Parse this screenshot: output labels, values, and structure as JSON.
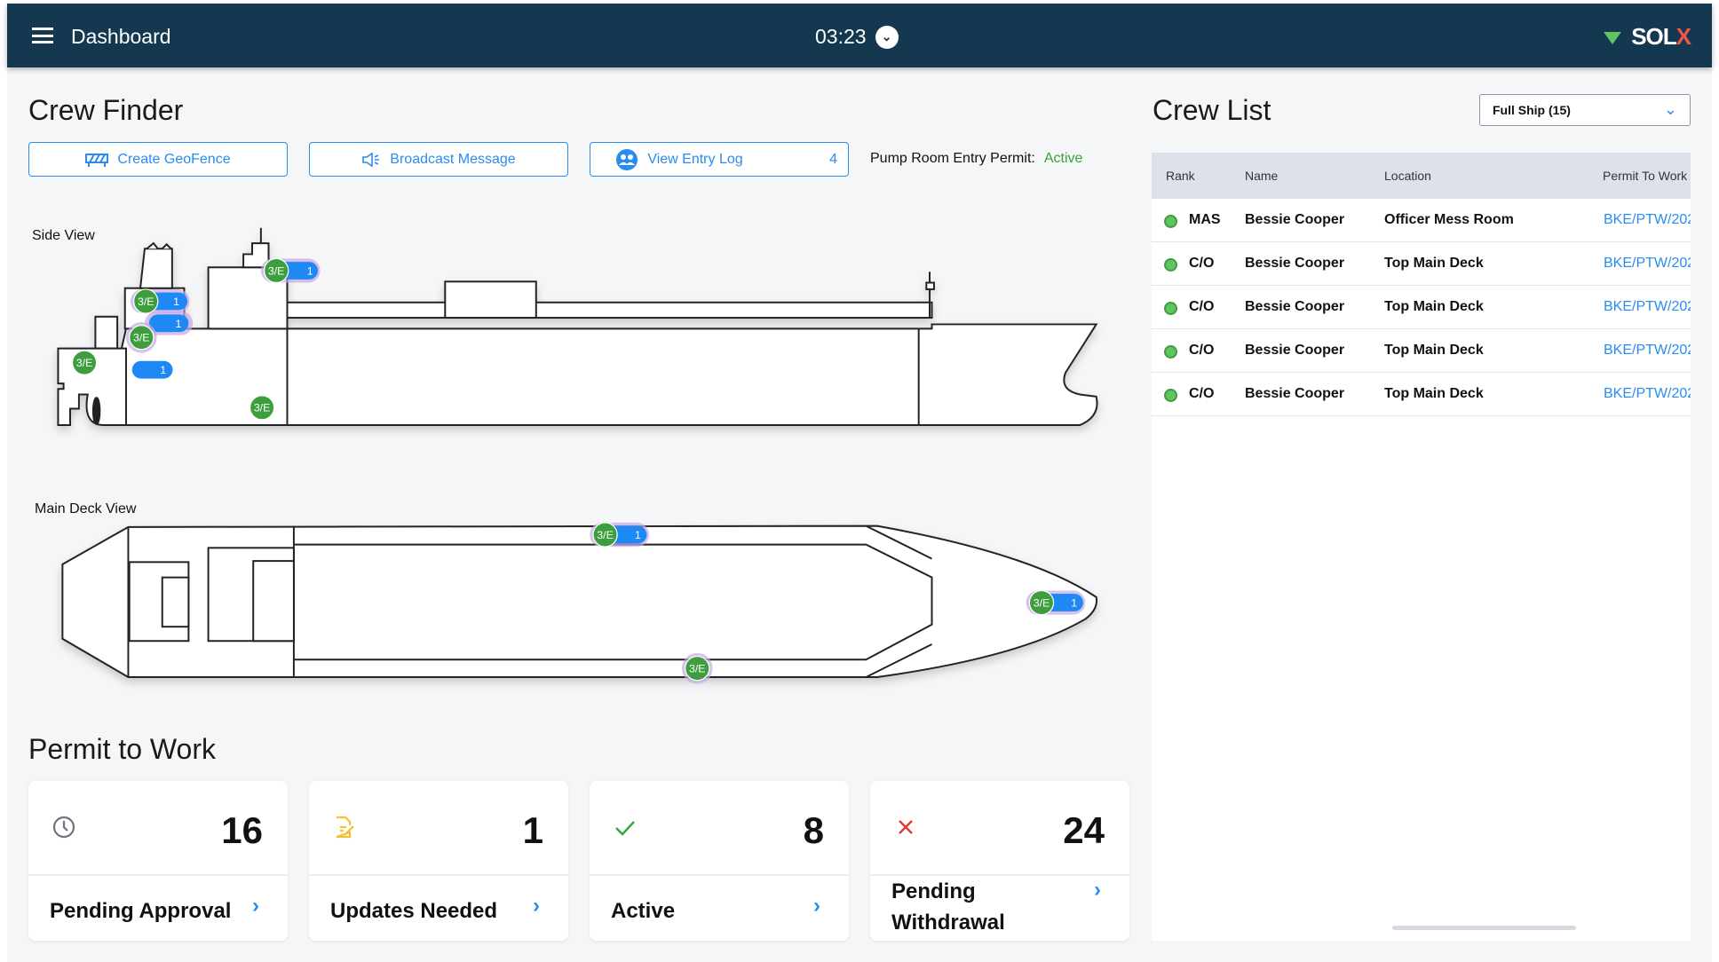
{
  "header": {
    "title": "Dashboard",
    "time": "03:23",
    "logo": "SOL",
    "logo_x": "X"
  },
  "crew_finder": {
    "title": "Crew Finder",
    "buttons": [
      {
        "label": "Create GeoFence",
        "icon": "geofence-icon"
      },
      {
        "label": "Broadcast Message",
        "icon": "megaphone-icon"
      },
      {
        "label": "View Entry Log",
        "icon": "people-icon",
        "count": "4"
      }
    ],
    "pump_room": {
      "label": "Pump Room Entry Permit:",
      "value": "Active"
    },
    "side_view_label": "Side View",
    "main_deck_label": "Main Deck View",
    "marker": {
      "rank": "3/E",
      "count": "1"
    }
  },
  "crew_list": {
    "title": "Crew List",
    "filter": "Full Ship (15)",
    "columns": [
      "Rank",
      "Name",
      "Location",
      "Permit To Work"
    ],
    "rows": [
      {
        "rank": "MAS",
        "name": "Bessie Cooper",
        "location": "Officer Mess Room",
        "permit": "BKE/PTW/202"
      },
      {
        "rank": "C/O",
        "name": "Bessie Cooper",
        "location": "Top Main Deck",
        "permit": "BKE/PTW/202"
      },
      {
        "rank": "C/O",
        "name": "Bessie Cooper",
        "location": "Top Main Deck",
        "permit": "BKE/PTW/202"
      },
      {
        "rank": "C/O",
        "name": "Bessie Cooper",
        "location": "Top Main Deck",
        "permit": "BKE/PTW/202"
      },
      {
        "rank": "C/O",
        "name": "Bessie Cooper",
        "location": "Top Main Deck",
        "permit": "BKE/PTW/202"
      }
    ]
  },
  "permit_to_work": {
    "title": "Permit to Work",
    "cards": [
      {
        "count": "16",
        "label": "Pending Approval",
        "icon": "clock-icon",
        "color": "#6b7280"
      },
      {
        "count": "1",
        "label": "Updates Needed",
        "icon": "document-edit-icon",
        "color": "#f2c230"
      },
      {
        "count": "8",
        "label": "Active",
        "icon": "check-icon",
        "color": "#3aa33a"
      },
      {
        "count": "24",
        "label": "Pending Withdrawal",
        "icon": "close-icon",
        "color": "#e53935"
      }
    ]
  },
  "colors": {
    "header": "#143850",
    "accent": "#2a8cf0",
    "active": "#3aa33a",
    "marker_green": "#3e9e3e",
    "marker_blue": "#1e88f5",
    "marker_ring": "#c6a6e6"
  }
}
